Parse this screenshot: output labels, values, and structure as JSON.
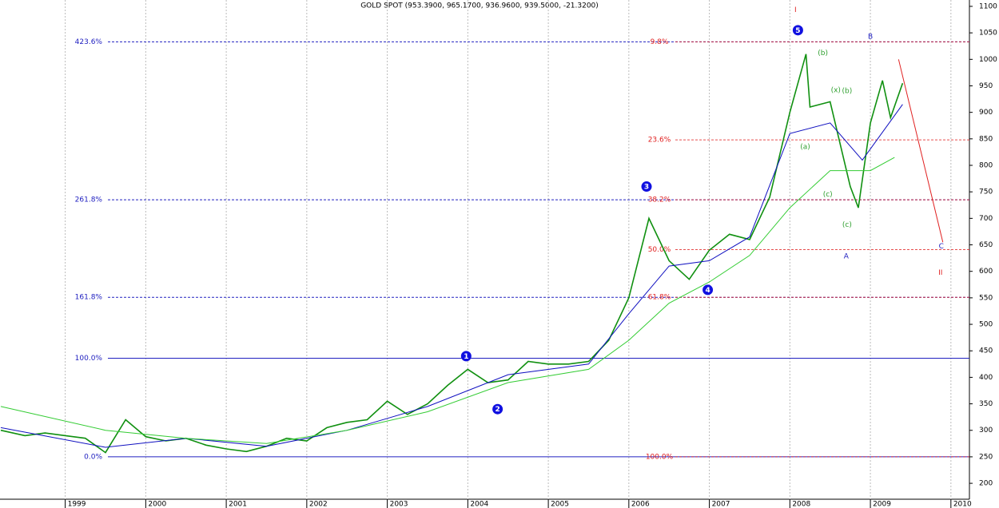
{
  "chart_data": {
    "type": "line",
    "title": "GOLD SPOT (953.3900, 965.1700, 936.9600, 939.5000, -21.3200)",
    "xlim": [
      1998.19,
      2010.23
    ],
    "ylim": [
      170,
      1112
    ],
    "xticks": [
      1999,
      2000,
      2001,
      2002,
      2003,
      2004,
      2005,
      2006,
      2007,
      2008,
      2009,
      2010
    ],
    "yticks": [
      200,
      250,
      300,
      350,
      400,
      450,
      500,
      550,
      600,
      650,
      700,
      750,
      800,
      850,
      900,
      950,
      1000,
      1050,
      1100
    ],
    "grid": true,
    "series": [
      {
        "color": "#109010",
        "x": [
          1998.2,
          1998.5,
          1998.75,
          1999.0,
          1999.25,
          1999.5,
          1999.75,
          2000.0,
          2000.25,
          2000.5,
          2000.75,
          2001.0,
          2001.25,
          2001.5,
          2001.75,
          2002.0,
          2002.25,
          2002.5,
          2002.75,
          2003.0,
          2003.25,
          2003.5,
          2003.75,
          2004.0,
          2004.25,
          2004.5,
          2004.75,
          2005.0,
          2005.25,
          2005.5,
          2005.75,
          2006.0,
          2006.25,
          2006.5,
          2006.75,
          2007.0,
          2007.25,
          2007.5,
          2007.75,
          2008.0,
          2008.2,
          2008.25,
          2008.5,
          2008.75,
          2008.85,
          2009.0,
          2009.15,
          2009.25,
          2009.4
        ],
        "values": [
          300,
          290,
          295,
          290,
          285,
          258,
          320,
          288,
          280,
          285,
          272,
          265,
          260,
          270,
          285,
          280,
          305,
          315,
          320,
          355,
          330,
          350,
          385,
          415,
          390,
          395,
          430,
          425,
          425,
          430,
          470,
          550,
          700,
          620,
          585,
          640,
          670,
          660,
          740,
          900,
          1010,
          910,
          920,
          760,
          720,
          880,
          960,
          890,
          955
        ]
      },
      {
        "color": "#1010c0",
        "x": [
          1998.2,
          1999.5,
          2000.5,
          2001.5,
          2002.5,
          2003.5,
          2004.5,
          2005.5,
          2006.0,
          2006.5,
          2007.0,
          2007.5,
          2008.0,
          2008.5,
          2008.9,
          2009.4
        ],
        "values": [
          305,
          268,
          285,
          270,
          300,
          345,
          405,
          425,
          520,
          610,
          620,
          665,
          860,
          880,
          810,
          915
        ]
      },
      {
        "color": "#33cc33",
        "x": [
          1998.2,
          1999.5,
          2000.5,
          2001.5,
          2002.5,
          2003.5,
          2004.5,
          2005.5,
          2006.0,
          2006.5,
          2007.0,
          2007.5,
          2008.0,
          2008.5,
          2009.0,
          2009.3
        ],
        "values": [
          345,
          300,
          285,
          275,
          300,
          335,
          390,
          415,
          470,
          540,
          580,
          630,
          720,
          790,
          790,
          815
        ]
      }
    ],
    "levels": [
      {
        "value": 1033,
        "label": "423.6%"
      },
      {
        "value": 735,
        "label": "261.8%"
      },
      {
        "value": 551,
        "label": "161.8%"
      },
      {
        "value": 436,
        "label": "100.0%"
      },
      {
        "value": 250,
        "label": "0.0%"
      }
    ],
    "levels_color": "#2020c0",
    "retracements": [
      {
        "value": 1033,
        "label": "9.8%"
      },
      {
        "value": 848,
        "label": "23.6%"
      },
      {
        "value": 735,
        "label": "38.2%"
      },
      {
        "value": 641,
        "label": "50.0%"
      },
      {
        "value": 551,
        "label": "61.8%"
      },
      {
        "value": 250,
        "label": "100.0%"
      }
    ],
    "retracements_color": "#e02020",
    "annotations": [
      {
        "text": "1",
        "x": 2003.98,
        "y": 440,
        "color": "#1010e0",
        "circled": true
      },
      {
        "text": "2",
        "x": 2004.37,
        "y": 340,
        "color": "#1010e0",
        "circled": true
      },
      {
        "text": "3",
        "x": 2006.22,
        "y": 760,
        "color": "#1010e0",
        "circled": true
      },
      {
        "text": "4",
        "x": 2006.98,
        "y": 565,
        "color": "#1010e0",
        "circled": true
      },
      {
        "text": "5",
        "x": 2008.1,
        "y": 1055,
        "color": "#1010e0",
        "circled": true
      },
      {
        "text": "I",
        "x": 2008.07,
        "y": 1093,
        "color": "#e02020",
        "circled": false
      },
      {
        "text": "II",
        "x": 2009.87,
        "y": 597,
        "color": "#e02020",
        "circled": false
      },
      {
        "text": "A",
        "x": 2008.7,
        "y": 628,
        "color": "#2020c0",
        "circled": false
      },
      {
        "text": "B",
        "x": 2009.0,
        "y": 1043,
        "color": "#2020c0",
        "circled": false
      },
      {
        "text": "C",
        "x": 2009.88,
        "y": 647,
        "color": "#2020c0",
        "circled": false
      },
      {
        "text": "(b)",
        "x": 2008.41,
        "y": 1012,
        "color": "#30a030",
        "circled": false
      },
      {
        "text": "(a)",
        "x": 2008.19,
        "y": 835,
        "color": "#30a030",
        "circled": false
      },
      {
        "text": "(x)",
        "x": 2008.57,
        "y": 942,
        "color": "#30a030",
        "circled": false
      },
      {
        "text": "(b)",
        "x": 2008.71,
        "y": 940,
        "color": "#30a030",
        "circled": false
      },
      {
        "text": "(c)",
        "x": 2008.47,
        "y": 745,
        "color": "#30a030",
        "circled": false
      },
      {
        "text": "(c)",
        "x": 2008.71,
        "y": 688,
        "color": "#30a030",
        "circled": false
      }
    ],
    "projection": {
      "x": [
        2009.35,
        2009.9
      ],
      "y": [
        1000,
        655
      ],
      "color": "#e02020"
    }
  }
}
